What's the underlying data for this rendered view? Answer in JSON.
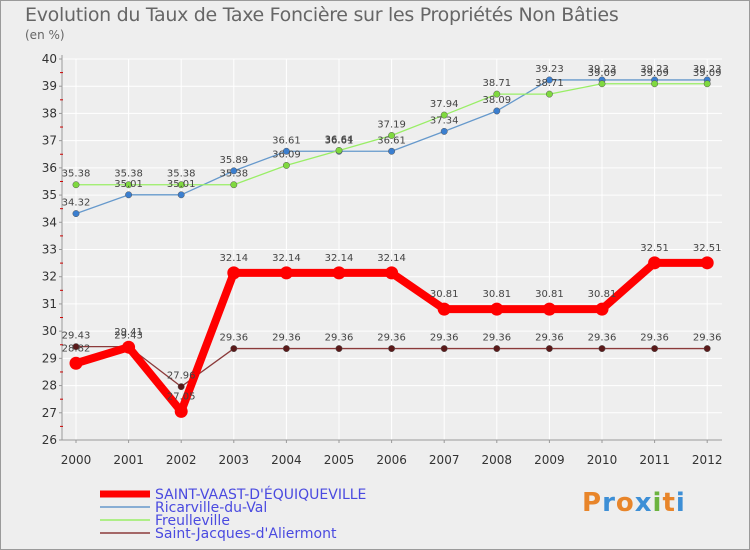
{
  "title": "Evolution du Taux de Taxe Foncière sur les Propriétés Non Bâties",
  "unit": "(en %)",
  "logo": {
    "letters": [
      "P",
      "r",
      "o",
      "x",
      "i",
      "t",
      "i"
    ]
  },
  "colors": {
    "background": "#eeeeee",
    "grid": "#ffffff",
    "axis": "#999999",
    "tick_red": "#cc0000",
    "logo_letters": [
      "#e8852a",
      "#3d8fd6",
      "#e8852a",
      "#3d8fd6",
      "#6cb33f",
      "#e8852a",
      "#3d8fd6"
    ]
  },
  "chart_data": {
    "type": "line",
    "title": "Evolution du Taux de Taxe Foncière sur les Propriétés Non Bâties",
    "ylabel": "(en %)",
    "xlabel": "",
    "ylim": [
      26,
      40
    ],
    "yticks": [
      26,
      27,
      28,
      29,
      30,
      31,
      32,
      33,
      34,
      35,
      36,
      37,
      38,
      39,
      40
    ],
    "categories": [
      "2000",
      "2001",
      "2002",
      "2003",
      "2004",
      "2005",
      "2006",
      "2007",
      "2008",
      "2009",
      "2010",
      "2011",
      "2012"
    ],
    "grid": true,
    "legend_position": "bottom-left",
    "series": [
      {
        "name": "SAINT-VAAST-D'ÉQUIQUEVILLE",
        "color": "#ff0000",
        "thick": true,
        "values": [
          28.82,
          29.41,
          27.05,
          32.14,
          32.14,
          32.14,
          32.14,
          30.81,
          30.81,
          30.81,
          30.81,
          32.51,
          32.51
        ],
        "labels": [
          "28.82",
          "29.41",
          "27.05",
          "32.14",
          "32.14",
          "32.14",
          "32.14",
          "30.81",
          "30.81",
          "30.81",
          "30.81",
          "32.51",
          "32.51"
        ]
      },
      {
        "name": "Ricarville-du-Val",
        "color": "#6699cc",
        "marker": "#3b7fd0",
        "thick": false,
        "values": [
          34.32,
          35.01,
          35.01,
          35.89,
          36.61,
          36.61,
          36.61,
          37.34,
          38.09,
          39.23,
          39.23,
          39.23,
          39.23
        ],
        "labels": [
          "34.32",
          "35.01",
          "35.01",
          "35.89",
          "36.61",
          "36.61",
          "36.61",
          "37.34",
          "38.09",
          "39.23",
          "39.23",
          "39.23",
          "39.23"
        ]
      },
      {
        "name": "Freulleville",
        "color": "#99ee66",
        "marker": "#7fd93f",
        "thick": false,
        "values": [
          35.38,
          35.38,
          35.38,
          35.38,
          36.09,
          36.64,
          37.19,
          37.94,
          38.71,
          38.71,
          39.09,
          39.09,
          39.09
        ],
        "labels": [
          "35.38",
          "35.38",
          "35.38",
          "35.38",
          "36.09",
          "36.64",
          "37.19",
          "37.94",
          "38.71",
          "38.71",
          "39.09",
          "39.09",
          "39.09"
        ]
      },
      {
        "name": "Saint-Jacques-d'Aliermont",
        "color": "#8b3a3a",
        "marker": "#5a1a1a",
        "thick": false,
        "values": [
          29.43,
          29.43,
          27.96,
          29.36,
          29.36,
          29.36,
          29.36,
          29.36,
          29.36,
          29.36,
          29.36,
          29.36,
          29.36
        ],
        "labels": [
          "29.43",
          "29.43",
          "27.96",
          "29.36",
          "29.36",
          "29.36",
          "29.36",
          "29.36",
          "29.36",
          "29.36",
          "29.36",
          "29.36",
          "29.36"
        ]
      }
    ]
  }
}
